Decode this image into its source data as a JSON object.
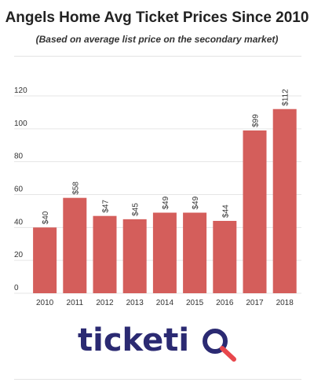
{
  "chart_data": {
    "type": "bar",
    "title": "Angels Home Avg Ticket Prices Since 2010",
    "subtitle": "(Based on average list price on the secondary market)",
    "categories": [
      "2010",
      "2011",
      "2012",
      "2013",
      "2014",
      "2015",
      "2016",
      "2017",
      "2018"
    ],
    "values": [
      40,
      58,
      47,
      45,
      49,
      49,
      44,
      99,
      112
    ],
    "data_labels": [
      "$40",
      "$58",
      "$47",
      "$45",
      "$49",
      "$49",
      "$44",
      "$99",
      "$112"
    ],
    "xlabel": "",
    "ylabel": "",
    "ylim": [
      0,
      120
    ],
    "yticks": [
      "0",
      "20",
      "40",
      "60",
      "80",
      "100",
      "120"
    ],
    "grid": true,
    "colors": {
      "bar": "#d45e5b",
      "grid": "#e6e6e6",
      "text": "#333333"
    }
  },
  "logo": {
    "text_main": "ticketi",
    "text_q": "Q",
    "colors": {
      "main": "#2b2a72",
      "accent": "#e8474c"
    }
  }
}
